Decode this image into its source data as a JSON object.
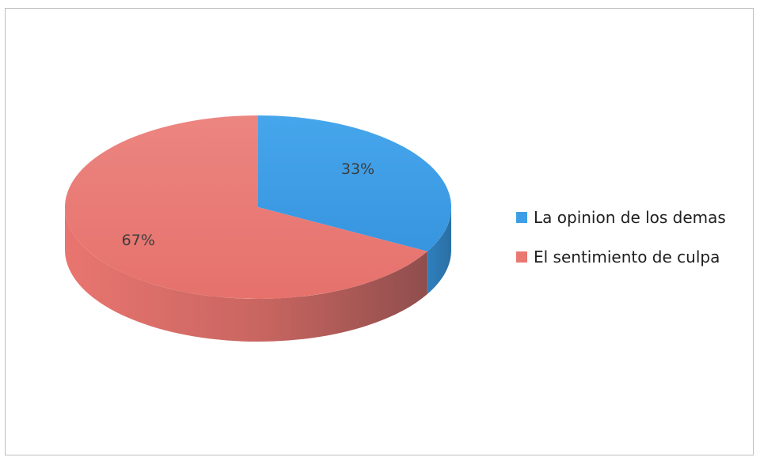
{
  "chart_data": {
    "type": "pie",
    "title": "",
    "categories": [
      "La opinion de los demas",
      "El sentimiento de culpa"
    ],
    "values": [
      33,
      67
    ],
    "data_labels": [
      "33%",
      "67%"
    ],
    "colors": [
      "#3d9ee5",
      "#e97873"
    ],
    "legend_position": "right",
    "style": "3d"
  },
  "legend": {
    "items": [
      {
        "label": "La opinion de los demas",
        "color": "#3d9ee5"
      },
      {
        "label": "El sentimiento de culpa",
        "color": "#e97873"
      }
    ]
  }
}
